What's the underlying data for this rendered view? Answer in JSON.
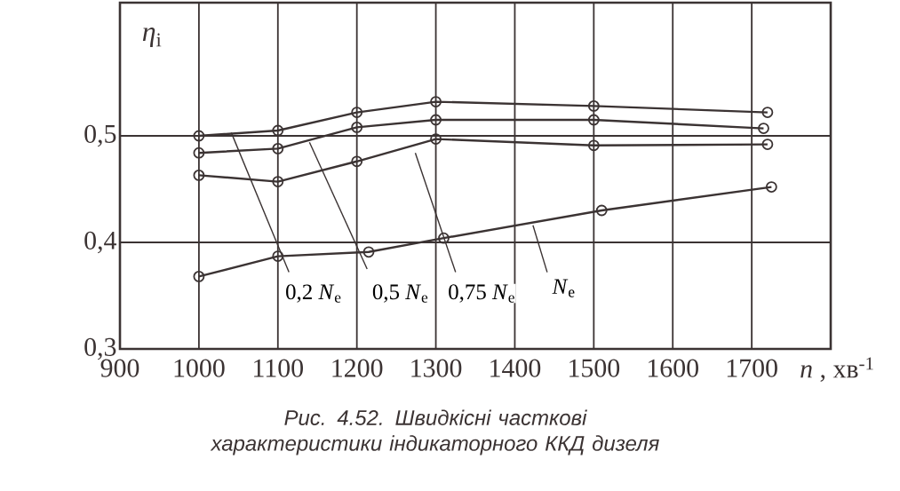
{
  "chart_data": {
    "type": "line",
    "title": "Рис. 4.52. Швидкісні часткові характеристики індикаторного ККД дизеля",
    "xlabel": "*n* , хв$^{-1}$",
    "ylabel": "*η*$_{i}$",
    "xlim": [
      900,
      1800
    ],
    "ylim": [
      0.3,
      0.625
    ],
    "xticks": [
      900,
      1000,
      1100,
      1200,
      1300,
      1400,
      1500,
      1600,
      1700
    ],
    "yticks": [
      {
        "value": 0.3,
        "label": "0,3"
      },
      {
        "value": 0.4,
        "label": "0,4"
      },
      {
        "value": 0.5,
        "label": "0,5"
      }
    ],
    "grid": true,
    "marker": "circle",
    "line_style": "solid",
    "series": [
      {
        "name": "0,2 *N*$_{e}$",
        "color": "#3b3333",
        "x": [
          1000,
          1100,
          1200,
          1300,
          1500,
          1720
        ],
        "values": [
          0.5,
          0.505,
          0.522,
          0.532,
          0.528,
          0.522
        ]
      },
      {
        "name": "0,5 *N*$_{e}$",
        "color": "#3b3333",
        "x": [
          1000,
          1100,
          1200,
          1300,
          1500,
          1715
        ],
        "values": [
          0.484,
          0.488,
          0.508,
          0.515,
          0.515,
          0.507
        ]
      },
      {
        "name": "0,75 *N*$_{e}$",
        "color": "#3b3333",
        "x": [
          1000,
          1100,
          1200,
          1300,
          1500,
          1720
        ],
        "values": [
          0.463,
          0.457,
          0.476,
          0.497,
          0.491,
          0.492
        ]
      },
      {
        "name": "*N*$_{e}$",
        "color": "#3b3333",
        "x": [
          1000,
          1100,
          1215,
          1310,
          1510,
          1725
        ],
        "values": [
          0.368,
          0.387,
          0.391,
          0.404,
          0.43,
          0.452
        ]
      }
    ]
  }
}
